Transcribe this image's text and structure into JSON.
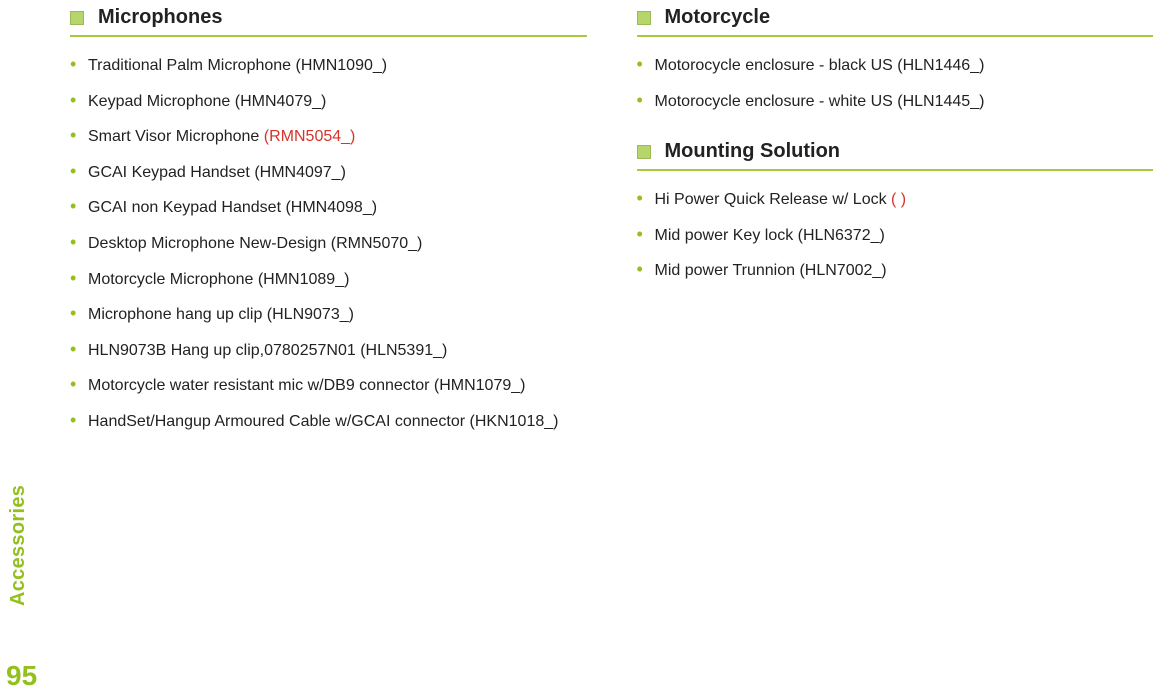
{
  "page": {
    "sidebar_label": "Accessories",
    "page_number": "95"
  },
  "colors": {
    "accent": "#93c01f",
    "rule": "#a7ca3b",
    "marker_fill": "#b6d66b",
    "marker_border": "#9cb95a",
    "highlight": "#d4342a",
    "text": "#222222",
    "background": "#ffffff"
  },
  "left_column": {
    "sections": [
      {
        "title": "Microphones",
        "items": [
          {
            "text": "Traditional Palm Microphone (HMN1090_)"
          },
          {
            "text": "Keypad Microphone (HMN4079_)"
          },
          {
            "text_prefix": "Smart Visor Microphone ",
            "highlight": "(RMN5054_)"
          },
          {
            "text": "GCAI Keypad Handset (HMN4097_)"
          },
          {
            "text": "GCAI non Keypad Handset (HMN4098_)"
          },
          {
            "text": "Desktop Microphone New-Design (RMN5070_)"
          },
          {
            "text": "Motorcycle Microphone (HMN1089_)"
          },
          {
            "text": "Microphone hang up clip (HLN9073_)"
          },
          {
            "text": "HLN9073B Hang up clip,0780257N01 (HLN5391_)"
          },
          {
            "text": "Motorcycle water resistant mic w/DB9 connector (HMN1079_)"
          },
          {
            "text": "HandSet/Hangup Armoured Cable w/GCAI connector (HKN1018_)"
          }
        ]
      }
    ]
  },
  "right_column": {
    "sections": [
      {
        "title": "Motorcycle",
        "items": [
          {
            "text": "Motorocycle enclosure - black US (HLN1446_)"
          },
          {
            "text": "Motorocycle enclosure - white US (HLN1445_)"
          }
        ]
      },
      {
        "title": "Mounting Solution",
        "items": [
          {
            "text_prefix": "Hi Power Quick Release w/ Lock ",
            "highlight": "( )"
          },
          {
            "text": "Mid power Key lock (HLN6372_)"
          },
          {
            "text": "Mid power Trunnion (HLN7002_)"
          }
        ]
      }
    ]
  }
}
